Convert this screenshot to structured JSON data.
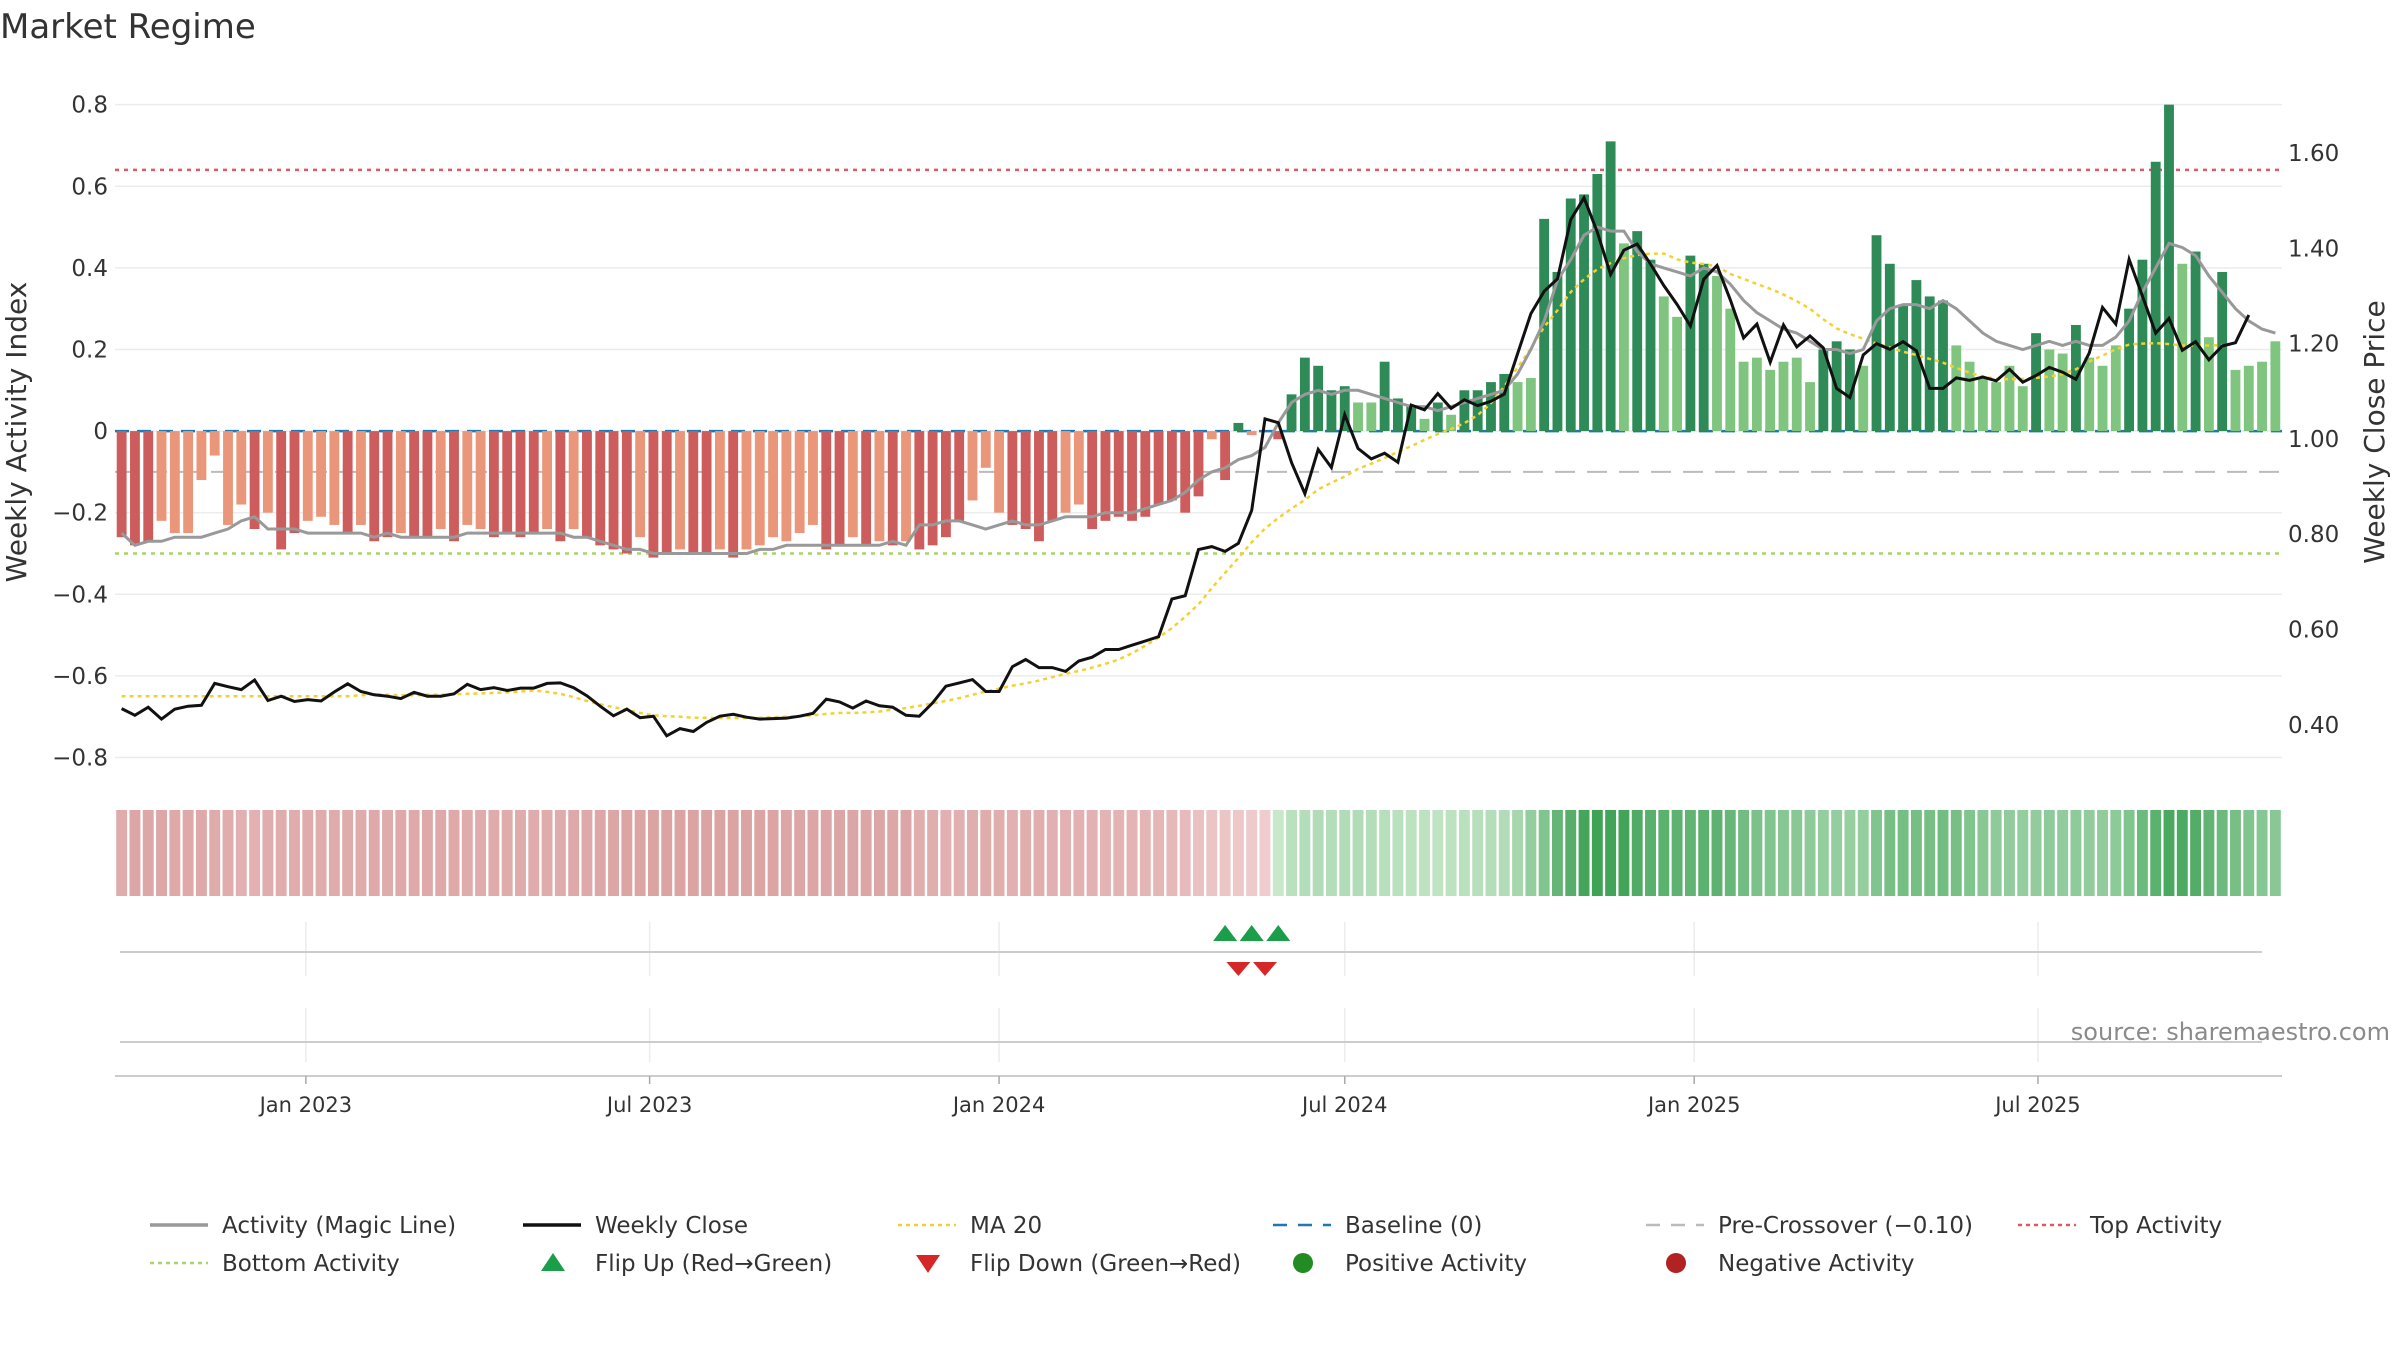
{
  "title": "Market Regime",
  "source": "source: sharemaestro.com",
  "colors": {
    "pos_dark": "#2e8b57",
    "pos_light": "#7fc47f",
    "neg_dark": "#cd5c5c",
    "neg_light": "#e9967a",
    "magic": "#999999",
    "close": "#111111",
    "ma20": "#f2d230",
    "baseline": "#1f77b4",
    "precross": "#bbbbbb",
    "top": "#e05a66",
    "bottom": "#a9d46a",
    "flip_up": "#1a9e4a",
    "flip_down": "#d62728",
    "pos_dot": "#228b22",
    "neg_dot": "#b22222"
  },
  "chart_data": {
    "type": "bar",
    "x_type": "week",
    "start_week": "2022-09-26",
    "weeks": 157,
    "left_axis": {
      "label": "Weekly Activity Index",
      "ylim": [
        -0.86,
        0.88
      ],
      "ticks": [
        "0.8",
        "0.6",
        "0.4",
        "0.2",
        "0",
        "−0.2",
        "−0.4",
        "−0.6",
        "−0.8"
      ]
    },
    "right_axis": {
      "label": "Weekly Close Price",
      "ylim": [
        0.28,
        1.77
      ],
      "ticks": [
        "1.60",
        "1.40",
        "1.20",
        "1.00",
        "0.80",
        "0.60",
        "0.40"
      ]
    },
    "x_ticks": [
      "Jan 2023",
      "Jul 2023",
      "Jan 2024",
      "Jul 2024",
      "Jan 2025",
      "Jul 2025"
    ],
    "x_tick_dates": [
      "2023-01-01",
      "2023-07-01",
      "2024-01-01",
      "2024-07-01",
      "2025-01-01",
      "2025-07-01"
    ],
    "reference_lines": {
      "baseline": 0,
      "pre_crossover": -0.1,
      "top_activity": 0.64,
      "bottom_activity": -0.3
    },
    "flip_up_weeks": [
      "2024-04-29",
      "2024-05-13",
      "2024-05-27"
    ],
    "flip_down_weeks": [
      "2024-05-06",
      "2024-05-20"
    ],
    "series": [
      {
        "name": "Weekly Activity Index",
        "values": [
          -0.26,
          -0.28,
          -0.27,
          -0.22,
          -0.25,
          -0.25,
          -0.12,
          -0.06,
          -0.23,
          -0.18,
          -0.24,
          -0.2,
          -0.29,
          -0.25,
          -0.22,
          -0.21,
          -0.23,
          -0.25,
          -0.23,
          -0.27,
          -0.26,
          -0.25,
          -0.26,
          -0.26,
          -0.24,
          -0.27,
          -0.23,
          -0.24,
          -0.26,
          -0.25,
          -0.26,
          -0.25,
          -0.24,
          -0.27,
          -0.24,
          -0.26,
          -0.28,
          -0.29,
          -0.3,
          -0.26,
          -0.31,
          -0.3,
          -0.29,
          -0.3,
          -0.3,
          -0.29,
          -0.31,
          -0.29,
          -0.28,
          -0.26,
          -0.27,
          -0.25,
          -0.23,
          -0.29,
          -0.28,
          -0.26,
          -0.28,
          -0.27,
          -0.28,
          -0.27,
          -0.29,
          -0.28,
          -0.26,
          -0.22,
          -0.17,
          -0.09,
          -0.2,
          -0.23,
          -0.24,
          -0.27,
          -0.22,
          -0.2,
          -0.18,
          -0.24,
          -0.22,
          -0.21,
          -0.22,
          -0.21,
          -0.18,
          -0.17,
          -0.2,
          -0.16,
          -0.02,
          -0.12,
          0.02,
          -0.01,
          0.0,
          -0.02,
          0.09,
          0.18,
          0.16,
          0.1,
          0.11,
          0.07,
          0.07,
          0.17,
          0.08,
          0.06,
          0.03,
          0.07,
          0.04,
          0.1,
          0.1,
          0.12,
          0.14,
          0.12,
          0.13,
          0.52,
          0.39,
          0.57,
          0.58,
          0.63,
          0.71,
          0.46,
          0.49,
          0.42,
          0.33,
          0.28,
          0.43,
          0.41,
          0.38,
          0.3,
          0.17,
          0.18,
          0.15,
          0.17,
          0.18,
          0.12,
          0.2,
          0.22,
          0.2,
          0.16,
          0.48,
          0.41,
          0.31,
          0.37,
          0.33,
          0.32,
          0.21,
          0.17,
          0.13,
          0.12,
          0.16,
          0.11,
          0.24,
          0.2,
          0.19,
          0.26,
          0.18,
          0.16,
          0.21,
          0.3,
          0.42,
          0.66,
          0.8,
          0.41,
          0.44,
          0.23,
          0.39,
          0.15,
          0.16,
          0.17,
          0.22
        ],
        "axis": "left"
      },
      {
        "name": "Activity (Magic Line)",
        "values": [
          -0.25,
          -0.28,
          -0.27,
          -0.27,
          -0.26,
          -0.26,
          -0.26,
          -0.25,
          -0.24,
          -0.22,
          -0.21,
          -0.24,
          -0.24,
          -0.24,
          -0.25,
          -0.25,
          -0.25,
          -0.25,
          -0.25,
          -0.26,
          -0.25,
          -0.26,
          -0.26,
          -0.26,
          -0.26,
          -0.26,
          -0.25,
          -0.25,
          -0.25,
          -0.25,
          -0.25,
          -0.25,
          -0.25,
          -0.25,
          -0.26,
          -0.26,
          -0.27,
          -0.28,
          -0.29,
          -0.29,
          -0.3,
          -0.3,
          -0.3,
          -0.3,
          -0.3,
          -0.3,
          -0.3,
          -0.3,
          -0.29,
          -0.29,
          -0.28,
          -0.28,
          -0.28,
          -0.28,
          -0.28,
          -0.28,
          -0.28,
          -0.28,
          -0.27,
          -0.28,
          -0.23,
          -0.23,
          -0.22,
          -0.22,
          -0.23,
          -0.24,
          -0.23,
          -0.22,
          -0.23,
          -0.23,
          -0.22,
          -0.21,
          -0.21,
          -0.21,
          -0.2,
          -0.2,
          -0.2,
          -0.19,
          -0.18,
          -0.17,
          -0.15,
          -0.12,
          -0.1,
          -0.09,
          -0.07,
          -0.06,
          -0.04,
          0.02,
          0.07,
          0.09,
          0.1,
          0.09,
          0.1,
          0.1,
          0.09,
          0.08,
          0.07,
          0.06,
          0.06,
          0.05,
          0.06,
          0.07,
          0.08,
          0.09,
          0.1,
          0.14,
          0.2,
          0.27,
          0.37,
          0.42,
          0.48,
          0.5,
          0.49,
          0.49,
          0.44,
          0.41,
          0.4,
          0.39,
          0.38,
          0.4,
          0.39,
          0.36,
          0.32,
          0.29,
          0.27,
          0.25,
          0.24,
          0.22,
          0.2,
          0.2,
          0.19,
          0.2,
          0.27,
          0.3,
          0.31,
          0.31,
          0.3,
          0.32,
          0.3,
          0.27,
          0.24,
          0.22,
          0.21,
          0.2,
          0.21,
          0.22,
          0.21,
          0.22,
          0.21,
          0.21,
          0.23,
          0.27,
          0.34,
          0.4,
          0.46,
          0.45,
          0.43,
          0.38,
          0.34,
          0.3,
          0.27,
          0.25,
          0.24
        ],
        "axis": "left"
      },
      {
        "name": "Weekly Close",
        "values": [
          0.434,
          0.42,
          0.437,
          0.412,
          0.433,
          0.439,
          0.441,
          0.487,
          0.48,
          0.474,
          0.494,
          0.451,
          0.46,
          0.449,
          0.453,
          0.45,
          0.469,
          0.486,
          0.47,
          0.463,
          0.46,
          0.455,
          0.468,
          0.46,
          0.46,
          0.465,
          0.485,
          0.474,
          0.478,
          0.472,
          0.477,
          0.477,
          0.487,
          0.488,
          0.478,
          0.461,
          0.439,
          0.419,
          0.433,
          0.415,
          0.418,
          0.377,
          0.392,
          0.386,
          0.405,
          0.418,
          0.422,
          0.416,
          0.412,
          0.413,
          0.414,
          0.418,
          0.424,
          0.454,
          0.448,
          0.435,
          0.45,
          0.44,
          0.437,
          0.42,
          0.418,
          0.446,
          0.481,
          0.488,
          0.495,
          0.47,
          0.47,
          0.522,
          0.537,
          0.52,
          0.52,
          0.512,
          0.534,
          0.542,
          0.558,
          0.558,
          0.567,
          0.576,
          0.585,
          0.664,
          0.671,
          0.768,
          0.774,
          0.764,
          0.781,
          0.85,
          1.042,
          1.034,
          0.95,
          0.885,
          0.978,
          0.94,
          1.051,
          0.98,
          0.958,
          0.97,
          0.951,
          1.071,
          1.061,
          1.095,
          1.064,
          1.082,
          1.07,
          1.079,
          1.094,
          1.179,
          1.263,
          1.31,
          1.336,
          1.46,
          1.506,
          1.434,
          1.345,
          1.396,
          1.409,
          1.367,
          1.322,
          1.282,
          1.237,
          1.335,
          1.364,
          1.292,
          1.212,
          1.241,
          1.161,
          1.239,
          1.193,
          1.216,
          1.191,
          1.106,
          1.087,
          1.176,
          1.2,
          1.188,
          1.204,
          1.185,
          1.106,
          1.106,
          1.128,
          1.123,
          1.13,
          1.122,
          1.146,
          1.119,
          1.133,
          1.15,
          1.14,
          1.125,
          1.18,
          1.276,
          1.241,
          1.377,
          1.3,
          1.222,
          1.253,
          1.186,
          1.204,
          1.166,
          1.195,
          1.202,
          1.26
        ],
        "axis": "right"
      },
      {
        "name": "MA 20",
        "values": [
          0.46,
          0.46,
          0.46,
          0.46,
          0.46,
          0.46,
          0.46,
          0.46,
          0.46,
          0.46,
          0.46,
          0.46,
          0.46,
          0.46,
          0.46,
          0.46,
          0.46,
          0.46,
          0.462,
          0.464,
          0.463,
          0.462,
          0.462,
          0.463,
          0.463,
          0.464,
          0.465,
          0.466,
          0.467,
          0.468,
          0.47,
          0.472,
          0.469,
          0.465,
          0.458,
          0.45,
          0.443,
          0.437,
          0.431,
          0.425,
          0.42,
          0.418,
          0.417,
          0.415,
          0.415,
          0.414,
          0.414,
          0.414,
          0.415,
          0.416,
          0.417,
          0.418,
          0.42,
          0.423,
          0.425,
          0.425,
          0.426,
          0.428,
          0.432,
          0.435,
          0.44,
          0.445,
          0.45,
          0.456,
          0.463,
          0.47,
          0.476,
          0.482,
          0.487,
          0.493,
          0.5,
          0.507,
          0.513,
          0.52,
          0.528,
          0.537,
          0.55,
          0.566,
          0.583,
          0.603,
          0.627,
          0.653,
          0.687,
          0.719,
          0.75,
          0.783,
          0.812,
          0.834,
          0.854,
          0.872,
          0.894,
          0.908,
          0.921,
          0.937,
          0.948,
          0.96,
          0.973,
          0.985,
          0.998,
          1.01,
          1.021,
          1.033,
          1.05,
          1.075,
          1.11,
          1.15,
          1.19,
          1.235,
          1.27,
          1.308,
          1.335,
          1.356,
          1.369,
          1.379,
          1.386,
          1.389,
          1.389,
          1.377,
          1.37,
          1.367,
          1.362,
          1.346,
          1.336,
          1.325,
          1.315,
          1.303,
          1.289,
          1.273,
          1.251,
          1.232,
          1.22,
          1.21,
          1.2,
          1.192,
          1.183,
          1.176,
          1.168,
          1.16,
          1.149,
          1.139,
          1.131,
          1.126,
          1.125,
          1.126,
          1.128,
          1.131,
          1.136,
          1.146,
          1.162,
          1.175,
          1.188,
          1.198,
          1.2,
          1.201,
          1.199,
          1.196,
          1.196,
          1.196,
          1.197
        ],
        "axis": "right"
      }
    ],
    "legend": [
      {
        "label": "Activity (Magic Line)",
        "symbol": "line",
        "color": "#999999"
      },
      {
        "label": "Weekly Close",
        "symbol": "line",
        "color": "#111111"
      },
      {
        "label": "MA 20",
        "symbol": "dotted",
        "color": "#f2d230"
      },
      {
        "label": "Baseline (0)",
        "symbol": "dashed",
        "color": "#1f77b4"
      },
      {
        "label": "Pre-Crossover (−0.10)",
        "symbol": "dashed",
        "color": "#bbbbbb"
      },
      {
        "label": "Top Activity",
        "symbol": "dotted",
        "color": "#e05a66"
      },
      {
        "label": "Bottom Activity",
        "symbol": "dotted",
        "color": "#a9d46a"
      },
      {
        "label": "Flip Up (Red→Green)",
        "symbol": "triangle-up",
        "color": "#1a9e4a"
      },
      {
        "label": "Flip Down (Green→Red)",
        "symbol": "triangle-down",
        "color": "#d62728"
      },
      {
        "label": "Positive Activity",
        "symbol": "circle",
        "color": "#228b22"
      },
      {
        "label": "Negative Activity",
        "symbol": "circle",
        "color": "#b22222"
      }
    ],
    "legend_position": "bottom",
    "grid": true
  }
}
